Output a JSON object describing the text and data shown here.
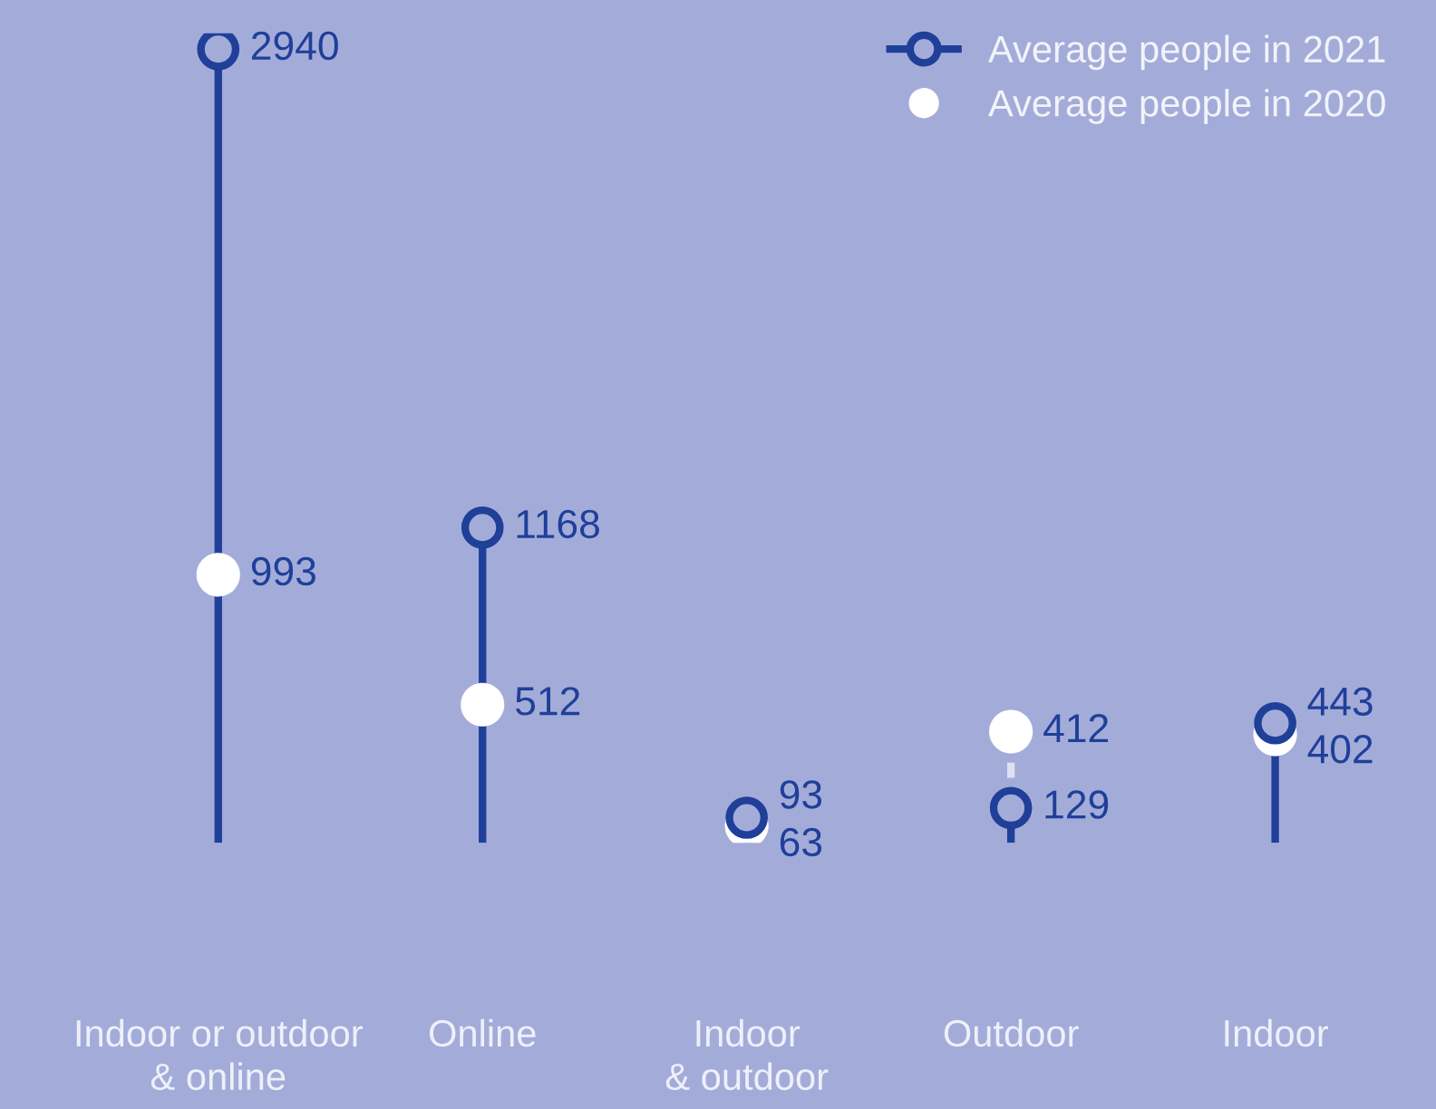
{
  "chart_data": {
    "type": "lollipop",
    "categories": [
      "Indoor or outdoor\n& online",
      "Online",
      "Indoor\n& outdoor",
      "Outdoor",
      "Indoor"
    ],
    "series": [
      {
        "name": "Average people in 2021",
        "color": "#1f3f99",
        "values": [
          2940,
          1168,
          93,
          129,
          443
        ]
      },
      {
        "name": "Average people in 2020",
        "color": "#ffffff",
        "type": "scatter",
        "values": [
          993,
          512,
          63,
          412,
          402
        ]
      }
    ],
    "data_labels": true,
    "legend": "top right",
    "grid": false
  }
}
